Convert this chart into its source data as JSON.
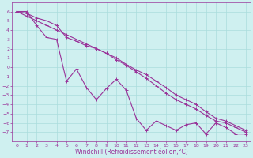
{
  "xlabel": "Windchill (Refroidissement éolien,°C)",
  "background_color": "#cff0f0",
  "grid_color": "#aadddd",
  "line_color": "#993399",
  "x_data": [
    0,
    1,
    2,
    3,
    4,
    5,
    6,
    7,
    8,
    9,
    10,
    11,
    12,
    13,
    14,
    15,
    16,
    17,
    18,
    19,
    20,
    21,
    22,
    23
  ],
  "y_jagged": [
    6.0,
    6.0,
    4.5,
    3.2,
    3.0,
    -1.5,
    -0.2,
    -2.2,
    -3.5,
    -2.3,
    -1.3,
    -2.5,
    -5.5,
    -6.8,
    -5.8,
    -6.3,
    -6.8,
    -6.2,
    -6.0,
    -7.2,
    -6.0,
    -6.5,
    -7.2,
    -7.2
  ],
  "y_upper": [
    6.0,
    5.8,
    5.3,
    5.0,
    4.5,
    3.2,
    2.8,
    2.3,
    2.0,
    1.5,
    0.8,
    0.2,
    -0.5,
    -1.2,
    -2.0,
    -2.8,
    -3.5,
    -4.0,
    -4.5,
    -5.2,
    -5.8,
    -6.0,
    -6.5,
    -7.0
  ],
  "y_lower": [
    6.0,
    5.5,
    5.0,
    4.5,
    4.0,
    3.5,
    3.0,
    2.5,
    2.0,
    1.5,
    1.0,
    0.3,
    -0.3,
    -0.8,
    -1.5,
    -2.2,
    -3.0,
    -3.5,
    -4.0,
    -4.8,
    -5.5,
    -5.8,
    -6.3,
    -6.8
  ],
  "ylim": [
    -8,
    7
  ],
  "xlim": [
    -0.5,
    23.5
  ],
  "yticks": [
    6,
    5,
    4,
    3,
    2,
    1,
    0,
    -1,
    -2,
    -3,
    -4,
    -5,
    -6,
    -7
  ],
  "xticks": [
    0,
    1,
    2,
    3,
    4,
    5,
    6,
    7,
    8,
    9,
    10,
    11,
    12,
    13,
    14,
    15,
    16,
    17,
    18,
    19,
    20,
    21,
    22,
    23
  ],
  "xlabel_fontsize": 5.5,
  "tick_fontsize": 4.5
}
